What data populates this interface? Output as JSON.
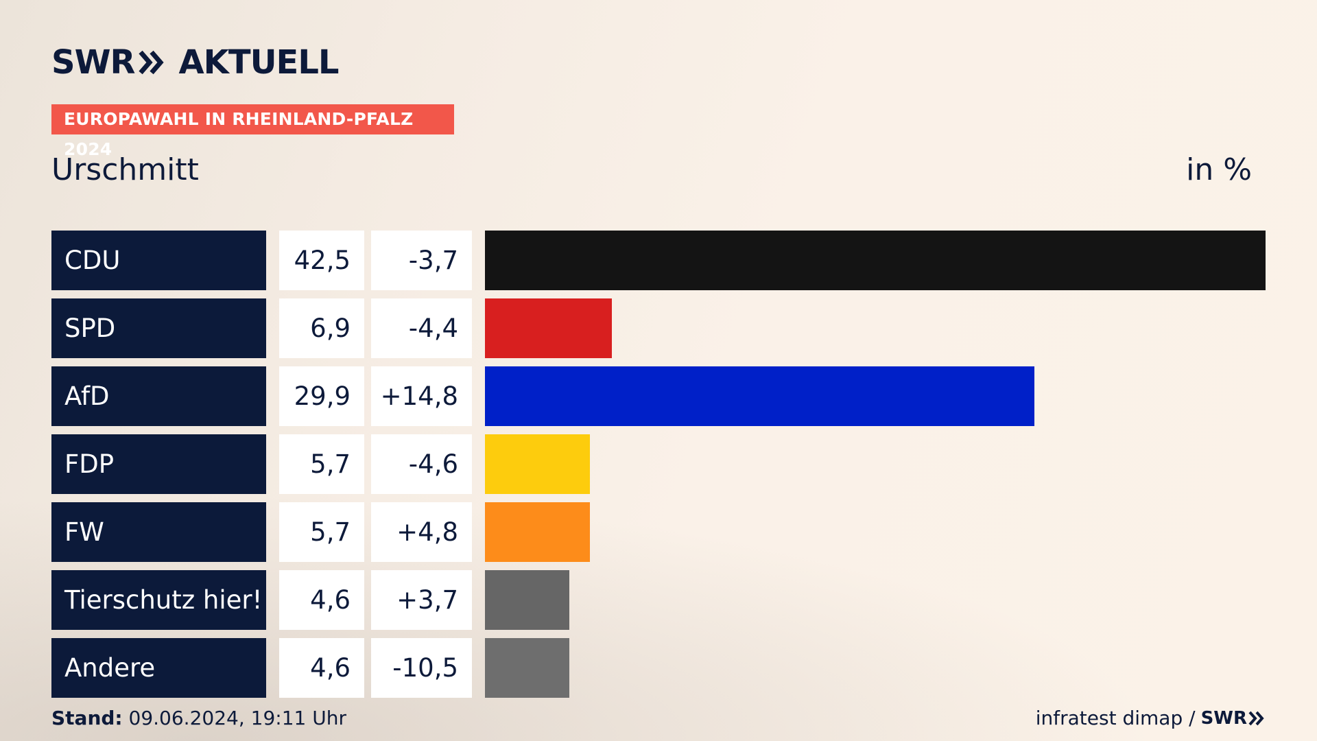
{
  "header": {
    "logo_brand": "SWR",
    "logo_product": "AKTUELL",
    "tag": "EUROPAWAHL IN RHEINLAND-PFALZ 2024",
    "subtitle": "Urschmitt",
    "unit": "in %"
  },
  "footer": {
    "stand_label": "Stand:",
    "stand_value": " 09.06.2024, 19:11 Uhr",
    "source": "infratest dimap /",
    "source_brand": "SWR"
  },
  "colors": {
    "accent": "#f2574a",
    "navy": "#0c1a3a"
  },
  "chart_data": {
    "type": "bar",
    "orientation": "horizontal",
    "categories": [
      "CDU",
      "SPD",
      "AfD",
      "FDP",
      "FW",
      "Tierschutz hier!",
      "Andere"
    ],
    "values": [
      42.5,
      6.9,
      29.9,
      5.7,
      5.7,
      4.6,
      4.6
    ],
    "value_labels": [
      "42,5",
      "6,9",
      "29,9",
      "5,7",
      "5,7",
      "4,6",
      "4,6"
    ],
    "diff_labels": [
      "-3,7",
      "-4,4",
      "+14,8",
      "-4,6",
      "+4,8",
      "+3,7",
      "-10,5"
    ],
    "diffs": [
      -3.7,
      -4.4,
      14.8,
      -4.6,
      4.8,
      3.7,
      -10.5
    ],
    "colors": [
      "#141414",
      "#d81f1f",
      "#0020c8",
      "#fdcc0d",
      "#fd8c1a",
      "#666666",
      "#6e6e6e"
    ],
    "xlim": [
      0,
      42.5
    ],
    "grid": false,
    "legend": "none"
  }
}
